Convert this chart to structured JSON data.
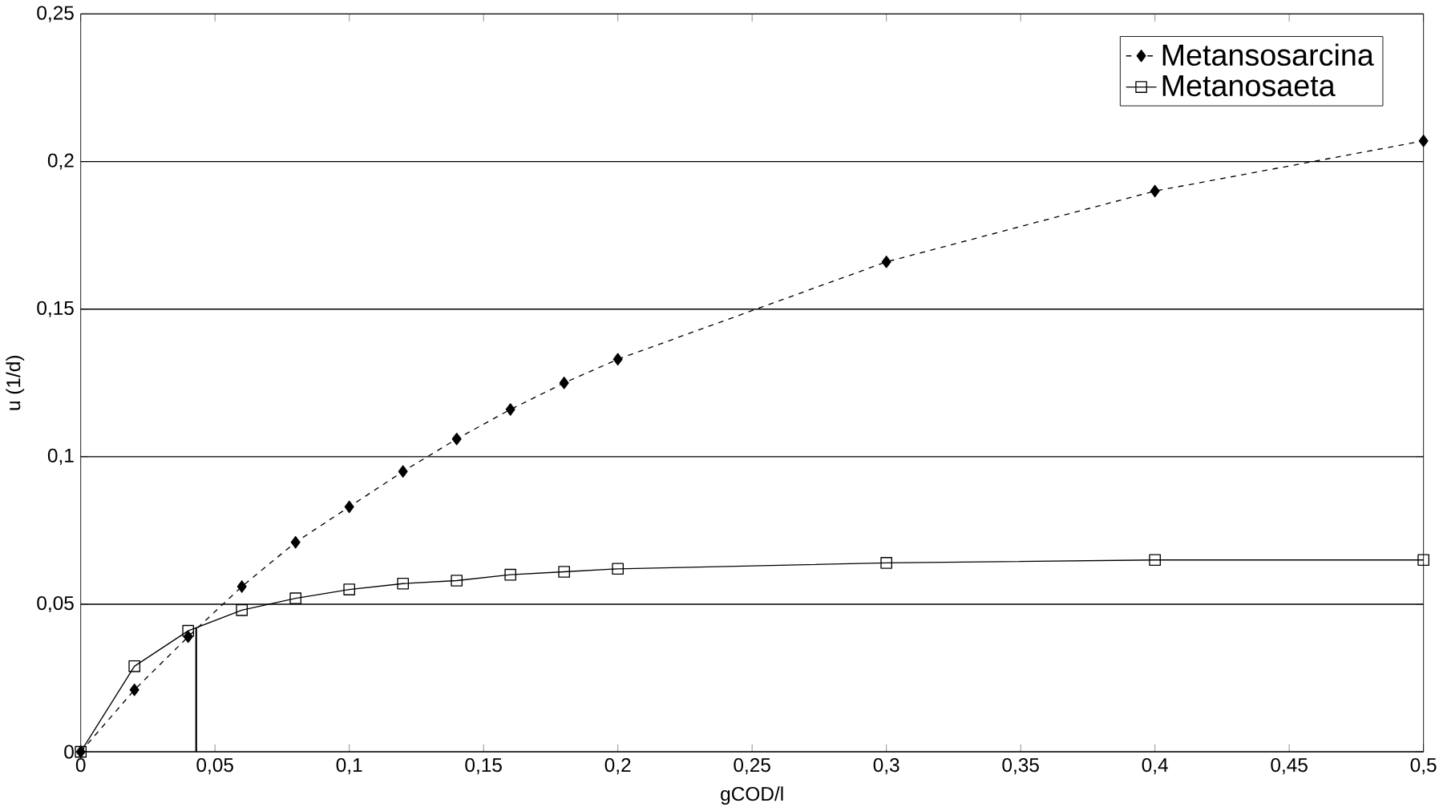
{
  "chart_data": {
    "type": "line",
    "xlabel": "gCOD/l",
    "ylabel": "u (1/d)",
    "x": [
      0,
      0.02,
      0.04,
      0.06,
      0.08,
      0.1,
      0.12,
      0.14,
      0.16,
      0.18,
      0.2,
      0.3,
      0.4,
      0.5
    ],
    "series": [
      {
        "name": "Metansosarcina",
        "color": "#000000",
        "marker": "diamond",
        "line_style": "dashed",
        "values": [
          0,
          0.021,
          0.039,
          0.056,
          0.071,
          0.083,
          0.095,
          0.106,
          0.116,
          0.125,
          0.133,
          0.166,
          0.19,
          0.207
        ]
      },
      {
        "name": "Metanosaeta",
        "color": "#000000",
        "marker": "square",
        "line_style": "solid",
        "values": [
          0,
          0.029,
          0.041,
          0.048,
          0.052,
          0.055,
          0.057,
          0.058,
          0.06,
          0.061,
          0.062,
          0.064,
          0.065,
          0.065
        ]
      }
    ],
    "xlim": [
      0,
      0.5
    ],
    "ylim": [
      0,
      0.25
    ],
    "xticks": [
      {
        "value": 0,
        "label": "0"
      },
      {
        "value": 0.05,
        "label": "0,05"
      },
      {
        "value": 0.1,
        "label": "0,1"
      },
      {
        "value": 0.15,
        "label": "0,15"
      },
      {
        "value": 0.2,
        "label": "0,2"
      },
      {
        "value": 0.25,
        "label": "0,25"
      },
      {
        "value": 0.3,
        "label": "0,3"
      },
      {
        "value": 0.35,
        "label": "0,35"
      },
      {
        "value": 0.4,
        "label": "0,4"
      },
      {
        "value": 0.45,
        "label": "0,45"
      },
      {
        "value": 0.5,
        "label": "0,5"
      }
    ],
    "yticks": [
      {
        "value": 0,
        "label": "0"
      },
      {
        "value": 0.05,
        "label": "0,05"
      },
      {
        "value": 0.1,
        "label": "0,1"
      },
      {
        "value": 0.15,
        "label": "0,15"
      },
      {
        "value": 0.2,
        "label": "0,2"
      },
      {
        "value": 0.25,
        "label": "0,25"
      }
    ],
    "ref_lines": [
      {
        "axis": "x",
        "value": 0.043,
        "color": "#000000"
      }
    ],
    "grid": "y",
    "legend": "top right"
  }
}
